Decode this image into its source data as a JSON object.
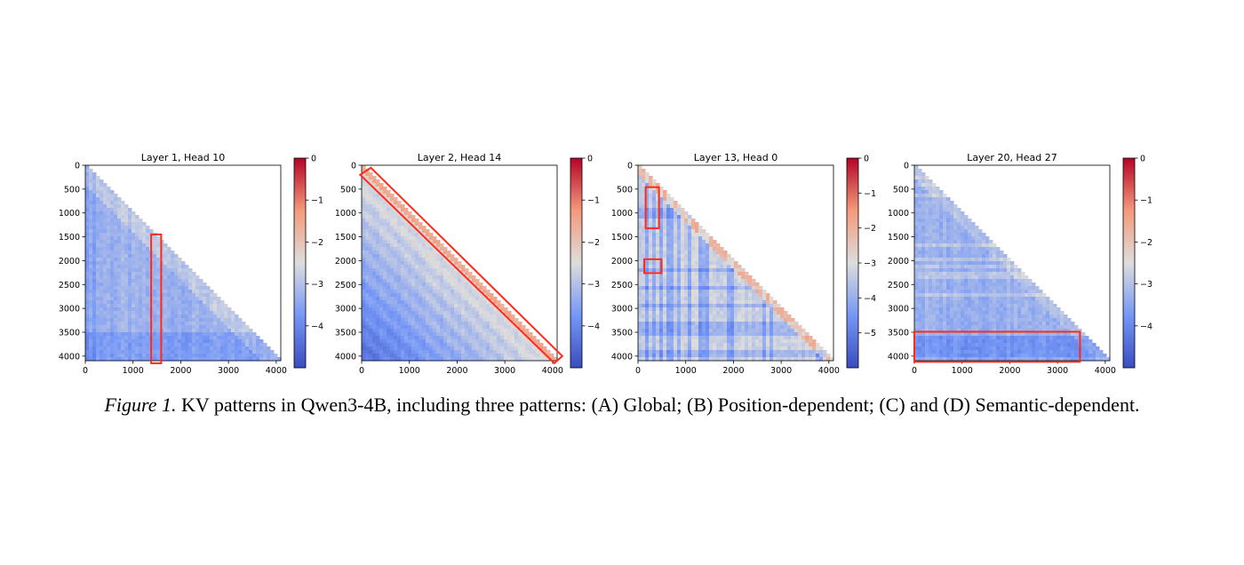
{
  "caption": {
    "label": "Figure 1.",
    "text": "KV patterns in Qwen3-4B, including three patterns: (A) Global; (B) Position-dependent; (C) and (D) Semantic-dependent."
  },
  "colormap": {
    "name": "coolwarm",
    "low": "#3b4cc0",
    "mid": "#dddddd",
    "high": "#b40426"
  },
  "highlight_color": "#ff2a1a",
  "chart_data": [
    {
      "type": "heatmap",
      "title": "Layer 1, Head 10",
      "shape": "lower-triangular",
      "pattern": "global",
      "xlim": [
        0,
        4096
      ],
      "ylim": [
        4096,
        0
      ],
      "xticks": [
        0,
        1000,
        2000,
        3000,
        4000
      ],
      "yticks": [
        0,
        500,
        1000,
        1500,
        2000,
        2500,
        3000,
        3500,
        4000
      ],
      "color_range": [
        -5,
        0
      ],
      "colorbar_ticks": [
        0,
        -1,
        -2,
        -3,
        -4
      ],
      "typical_value": -3.3,
      "highlights": [
        {
          "shape": "rect",
          "x": [
            1380,
            1590
          ],
          "y": [
            1450,
            4150
          ]
        }
      ]
    },
    {
      "type": "heatmap",
      "title": "Layer 2, Head 14",
      "shape": "lower-triangular",
      "pattern": "position-dependent",
      "xlim": [
        0,
        4096
      ],
      "ylim": [
        4096,
        0
      ],
      "xticks": [
        0,
        1000,
        2000,
        3000,
        4000
      ],
      "yticks": [
        0,
        500,
        1000,
        1500,
        2000,
        2500,
        3000,
        3500,
        4000
      ],
      "color_range": [
        -5,
        0
      ],
      "colorbar_ticks": [
        0,
        -1,
        -2,
        -3,
        -4
      ],
      "typical_value": -3.6,
      "highlights": [
        {
          "shape": "diagonal-band",
          "from": [
            100,
            200
          ],
          "to": [
            4000,
            4000
          ]
        }
      ]
    },
    {
      "type": "heatmap",
      "title": "Layer 13, Head 0",
      "shape": "lower-triangular",
      "pattern": "semantic-dependent",
      "xlim": [
        0,
        4096
      ],
      "ylim": [
        4096,
        0
      ],
      "xticks": [
        0,
        1000,
        2000,
        3000,
        4000
      ],
      "yticks": [
        0,
        500,
        1000,
        1500,
        2000,
        2500,
        3000,
        3500,
        4000
      ],
      "color_range": [
        -6,
        0
      ],
      "colorbar_ticks": [
        0,
        -1,
        -2,
        -3,
        -4,
        -5
      ],
      "typical_value": -3.2,
      "highlights": [
        {
          "shape": "rect",
          "x": [
            160,
            440
          ],
          "y": [
            460,
            1320
          ]
        },
        {
          "shape": "rect",
          "x": [
            130,
            490
          ],
          "y": [
            1970,
            2260
          ]
        }
      ]
    },
    {
      "type": "heatmap",
      "title": "Layer 20, Head 27",
      "shape": "lower-triangular",
      "pattern": "semantic-dependent",
      "xlim": [
        0,
        4096
      ],
      "ylim": [
        4096,
        0
      ],
      "xticks": [
        0,
        1000,
        2000,
        3000,
        4000
      ],
      "yticks": [
        0,
        500,
        1000,
        1500,
        2000,
        2500,
        3000,
        3500,
        4000
      ],
      "color_range": [
        -5,
        0
      ],
      "colorbar_ticks": [
        0,
        -1,
        -2,
        -3,
        -4
      ],
      "typical_value": -3.3,
      "highlights": [
        {
          "shape": "rect",
          "x": [
            0,
            3470
          ],
          "y": [
            3490,
            4120
          ]
        }
      ]
    }
  ]
}
